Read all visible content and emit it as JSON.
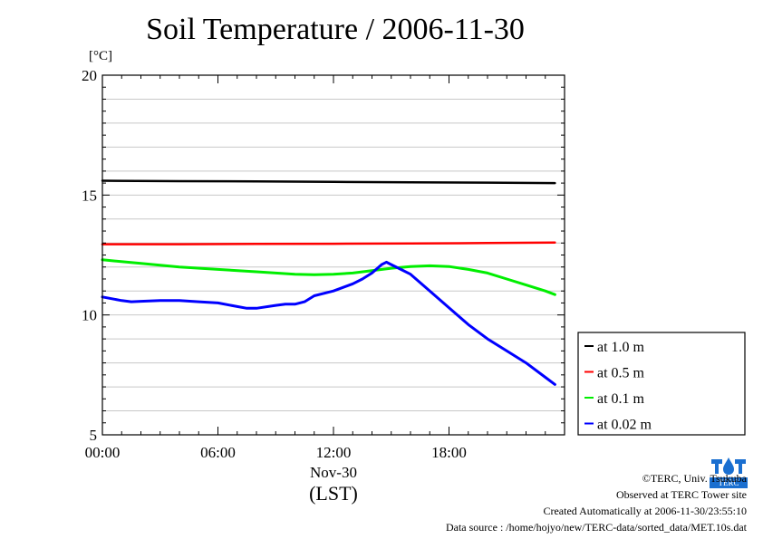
{
  "chart_data": {
    "type": "line",
    "title": "Soil Temperature / 2006-11-30",
    "ylabel": "[°C]",
    "xlabel_date": "Nov-30",
    "xlabel_tz": "(LST)",
    "ylim": [
      5,
      20
    ],
    "xlim": [
      0,
      24
    ],
    "y_ticks": [
      "5",
      "10",
      "15",
      "20"
    ],
    "x_ticks": [
      {
        "value": 0,
        "label": "00:00"
      },
      {
        "value": 6,
        "label": "06:00"
      },
      {
        "value": 12,
        "label": "12:00"
      },
      {
        "value": 18,
        "label": "18:00"
      }
    ],
    "grid": true,
    "legend_position": "right",
    "series": [
      {
        "name": "at 1.0 m",
        "color": "#000000",
        "points": [
          [
            0,
            15.6
          ],
          [
            4,
            15.58
          ],
          [
            8,
            15.57
          ],
          [
            12,
            15.55
          ],
          [
            16,
            15.53
          ],
          [
            20,
            15.52
          ],
          [
            23.5,
            15.5
          ]
        ]
      },
      {
        "name": "at 0.5 m",
        "color": "#ff0000",
        "points": [
          [
            0,
            12.95
          ],
          [
            4,
            12.95
          ],
          [
            8,
            12.96
          ],
          [
            12,
            12.97
          ],
          [
            16,
            12.98
          ],
          [
            20,
            13.0
          ],
          [
            23.5,
            13.02
          ]
        ]
      },
      {
        "name": "at 0.1 m",
        "color": "#00ee00",
        "points": [
          [
            0,
            12.3
          ],
          [
            2,
            12.15
          ],
          [
            4,
            12.0
          ],
          [
            6,
            11.9
          ],
          [
            8,
            11.8
          ],
          [
            10,
            11.7
          ],
          [
            11,
            11.68
          ],
          [
            12,
            11.7
          ],
          [
            13,
            11.75
          ],
          [
            14,
            11.85
          ],
          [
            15,
            11.95
          ],
          [
            16,
            12.02
          ],
          [
            17,
            12.05
          ],
          [
            18,
            12.02
          ],
          [
            19,
            11.9
          ],
          [
            20,
            11.75
          ],
          [
            21,
            11.5
          ],
          [
            22,
            11.25
          ],
          [
            23,
            11.0
          ],
          [
            23.5,
            10.85
          ]
        ]
      },
      {
        "name": "at 0.02 m",
        "color": "#0000ff",
        "points": [
          [
            0,
            10.75
          ],
          [
            1,
            10.6
          ],
          [
            1.5,
            10.55
          ],
          [
            2,
            10.57
          ],
          [
            3,
            10.6
          ],
          [
            4,
            10.6
          ],
          [
            5,
            10.55
          ],
          [
            6,
            10.5
          ],
          [
            7,
            10.35
          ],
          [
            7.5,
            10.28
          ],
          [
            8,
            10.28
          ],
          [
            9,
            10.4
          ],
          [
            9.5,
            10.45
          ],
          [
            10,
            10.45
          ],
          [
            10.5,
            10.55
          ],
          [
            11,
            10.8
          ],
          [
            12,
            11.0
          ],
          [
            13,
            11.3
          ],
          [
            13.5,
            11.5
          ],
          [
            14,
            11.75
          ],
          [
            14.5,
            12.1
          ],
          [
            14.75,
            12.2
          ],
          [
            15,
            12.1
          ],
          [
            15.5,
            11.9
          ],
          [
            16,
            11.7
          ],
          [
            17,
            11.0
          ],
          [
            18,
            10.3
          ],
          [
            19,
            9.6
          ],
          [
            20,
            9.0
          ],
          [
            21,
            8.5
          ],
          [
            22,
            8.0
          ],
          [
            23,
            7.4
          ],
          [
            23.5,
            7.1
          ]
        ]
      }
    ]
  },
  "credits": {
    "copyright": "©TERC, Univ. Tsukuba",
    "site": "Observed at TERC Tower site",
    "created": "Created Automatically at 2006-11-30/23:55:10",
    "source": "Data source : /home/hojyo/new/TERC-data/sorted_data/MET.10s.dat"
  },
  "logo": {
    "text": "TERC",
    "color": "#1a6fd0"
  }
}
